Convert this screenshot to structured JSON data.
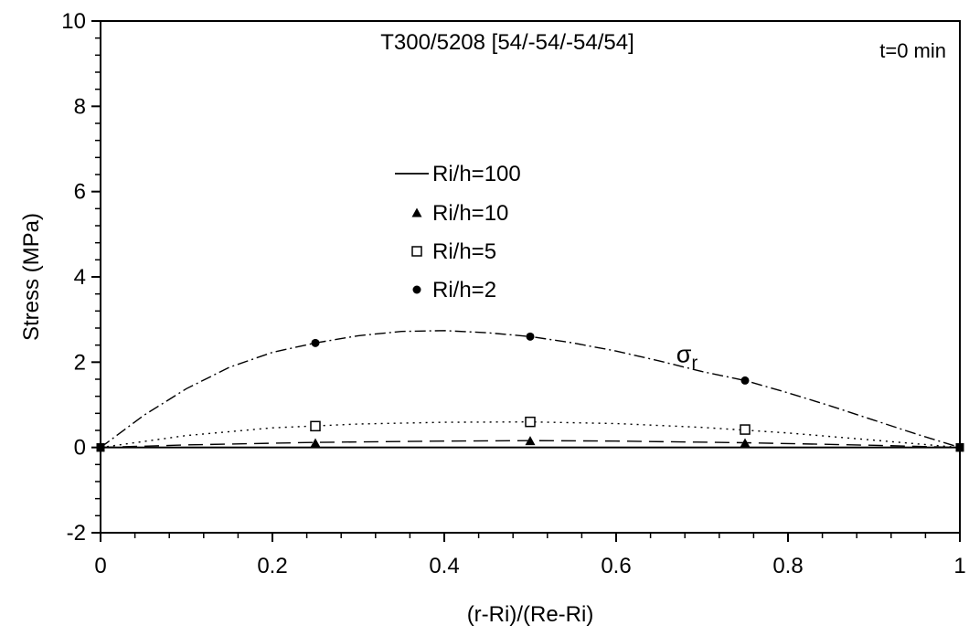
{
  "chart_data": {
    "type": "line",
    "title": "T300/5208 [54/-54/-54/54]",
    "annotation": "t=0 min",
    "curve_label": {
      "base": "σ",
      "sub": "r",
      "at": {
        "x": 0.67,
        "y": 2.0
      }
    },
    "xlabel": "(r-Ri)/(Re-Ri)",
    "ylabel": "Stress (MPa)",
    "xlim": [
      0,
      1
    ],
    "ylim": [
      -2,
      10
    ],
    "x_ticks": [
      0,
      0.2,
      0.4,
      0.6,
      0.8,
      1
    ],
    "x_tick_labels": [
      "0",
      "0.2",
      "0.4",
      "0.6",
      "0.8",
      "1"
    ],
    "y_ticks": [
      -2,
      0,
      2,
      4,
      6,
      8,
      10
    ],
    "y_tick_labels": [
      "-2",
      "0",
      "2",
      "4",
      "6",
      "8",
      "10"
    ],
    "grid": false,
    "legend_position": "center-left",
    "series": [
      {
        "name": "Ri/h=100",
        "marker": "none",
        "dash": "solid",
        "points": [
          [
            0,
            0
          ],
          [
            0.25,
            0.0
          ],
          [
            0.5,
            0.0
          ],
          [
            0.75,
            0.0
          ],
          [
            1,
            0
          ]
        ],
        "curve": [
          [
            0,
            0
          ],
          [
            0.25,
            0.0
          ],
          [
            0.5,
            0.0
          ],
          [
            0.75,
            0.0
          ],
          [
            1,
            0
          ]
        ]
      },
      {
        "name": "Ri/h=10",
        "marker": "triangle",
        "dash": "dashed",
        "points": [
          [
            0,
            0
          ],
          [
            0.25,
            0.1
          ],
          [
            0.5,
            0.15
          ],
          [
            0.75,
            0.1
          ],
          [
            1,
            0
          ]
        ],
        "curve": [
          [
            0,
            0
          ],
          [
            0.1,
            0.06
          ],
          [
            0.25,
            0.12
          ],
          [
            0.4,
            0.15
          ],
          [
            0.5,
            0.16
          ],
          [
            0.6,
            0.15
          ],
          [
            0.75,
            0.11
          ],
          [
            0.9,
            0.05
          ],
          [
            1,
            0
          ]
        ]
      },
      {
        "name": "Ri/h=5",
        "marker": "square-open",
        "dash": "dotted",
        "points": [
          [
            0,
            0
          ],
          [
            0.25,
            0.5
          ],
          [
            0.5,
            0.6
          ],
          [
            0.75,
            0.42
          ],
          [
            1,
            0
          ]
        ],
        "curve": [
          [
            0,
            0
          ],
          [
            0.1,
            0.28
          ],
          [
            0.2,
            0.46
          ],
          [
            0.3,
            0.55
          ],
          [
            0.4,
            0.59
          ],
          [
            0.5,
            0.6
          ],
          [
            0.6,
            0.56
          ],
          [
            0.7,
            0.47
          ],
          [
            0.8,
            0.34
          ],
          [
            0.9,
            0.17
          ],
          [
            1,
            0
          ]
        ]
      },
      {
        "name": "Ri/h=2",
        "marker": "circle-filled",
        "dash": "dashdot",
        "points": [
          [
            0,
            0
          ],
          [
            0.25,
            2.45
          ],
          [
            0.5,
            2.6
          ],
          [
            0.75,
            1.57
          ],
          [
            1,
            0
          ]
        ],
        "curve": [
          [
            0,
            0
          ],
          [
            0.05,
            0.75
          ],
          [
            0.1,
            1.38
          ],
          [
            0.15,
            1.88
          ],
          [
            0.2,
            2.23
          ],
          [
            0.25,
            2.45
          ],
          [
            0.3,
            2.62
          ],
          [
            0.35,
            2.72
          ],
          [
            0.4,
            2.74
          ],
          [
            0.45,
            2.69
          ],
          [
            0.5,
            2.6
          ],
          [
            0.55,
            2.45
          ],
          [
            0.6,
            2.26
          ],
          [
            0.65,
            2.03
          ],
          [
            0.7,
            1.78
          ],
          [
            0.75,
            1.57
          ],
          [
            0.8,
            1.28
          ],
          [
            0.85,
            0.97
          ],
          [
            0.9,
            0.64
          ],
          [
            0.95,
            0.31
          ],
          [
            1,
            0
          ]
        ]
      }
    ]
  }
}
